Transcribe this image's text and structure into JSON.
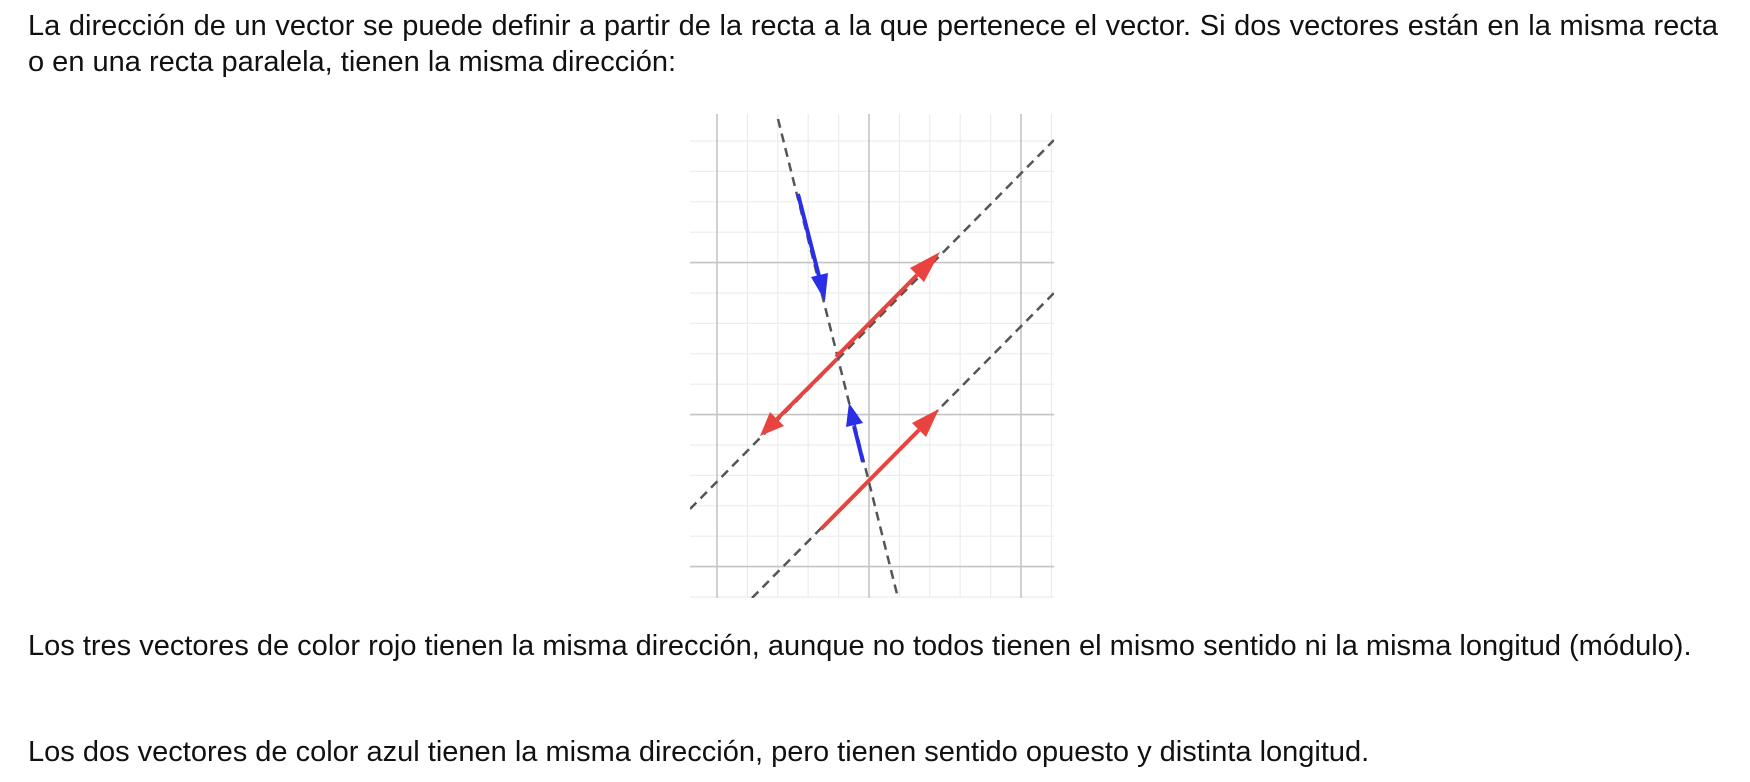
{
  "paragraphs": {
    "intro": "La dirección de un vector se puede definir a partir de la recta a la que pertenece el vector. Si dos vectores están en la misma recta o en una recta paralela, tienen la misma dirección:",
    "red_vectors": "Los tres vectores de color rojo tienen la misma dirección, aunque no todos tienen el mismo sentido ni la misma longitud (módulo).",
    "blue_vectors": "Los dos vectores de color azul tienen la misma dirección, pero tienen sentido opuesto y distinta longitud."
  },
  "figure": {
    "colors": {
      "red_vector": "#e8433f",
      "blue_vector": "#2a2ee6",
      "dashed_line": "#555555",
      "grid_minor": "#ececec",
      "grid_major": "#c4c4c4"
    }
  }
}
